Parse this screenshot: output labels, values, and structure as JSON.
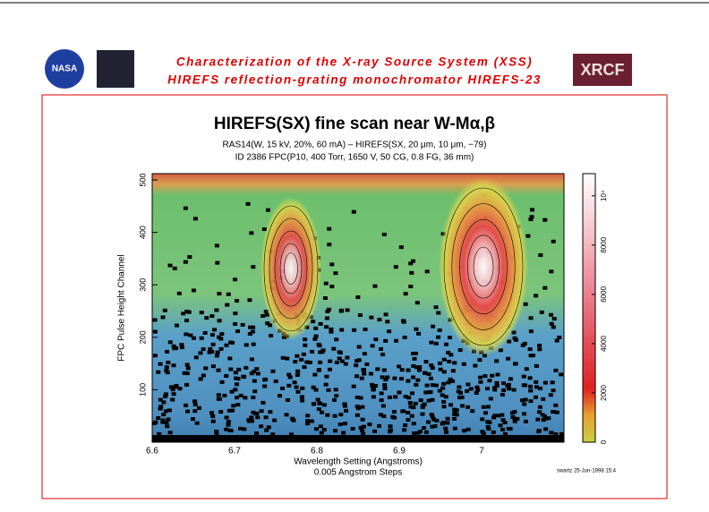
{
  "header": {
    "title": "Characterization of the X-ray Source System (XSS)",
    "subtitle": "HIREFS reflection-grating monochromator   HIREFS-23",
    "logos": [
      "NASA",
      "XRCF"
    ]
  },
  "chart_data": {
    "type": "heatmap",
    "title": "HIREFS(SX) fine scan near W-Mα,β",
    "subtitle": [
      "RAS14(W, 15 kV, 20%, 60 mA) – HIREFS(SX, 20 μm, 10 μm, −79)",
      "ID 2386 FPC(P10, 400 Torr, 1650 V, 50 CG, 0.8 FG, 36 mm)"
    ],
    "x_label": "Wavelength Setting (Angstroms)",
    "x_sublabel": "0.005 Angstrom Steps",
    "y_label": "FPC Pulse Height Channel",
    "xlim": [
      6.6,
      7.1
    ],
    "xticks": [
      6.6,
      6.7,
      6.8,
      6.9,
      7
    ],
    "ylim": [
      0,
      512
    ],
    "yticks": [
      100,
      200,
      300,
      400,
      500
    ],
    "clim": [
      0,
      10900
    ],
    "cticks": [
      0,
      2000,
      4000,
      6000,
      8000,
      {
        "value": 10000,
        "label": "10⁴"
      }
    ],
    "footnote": "swartz 25-Jun-1998 15:4"
  }
}
